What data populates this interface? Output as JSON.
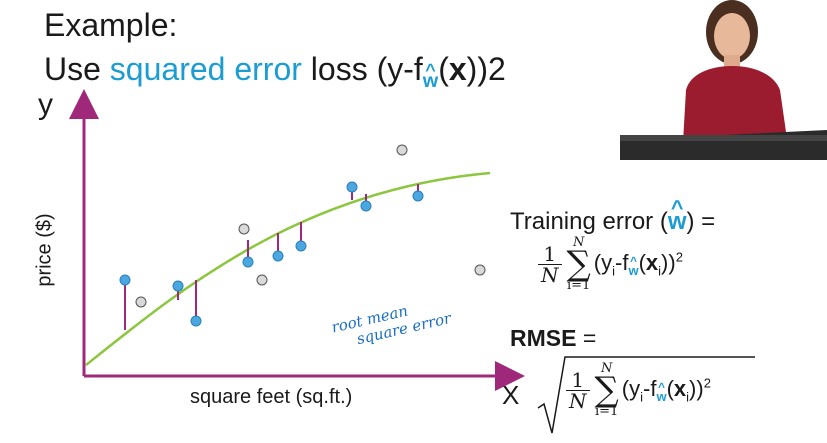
{
  "title": {
    "line1": "Example:",
    "line2_prefix": "Use ",
    "line2_highlight": "squared error",
    "line2_mid": " loss (y-f",
    "line2_sub": "w",
    "line2_hat": "^",
    "line2_x": "x",
    "line2_suffix": "))2",
    "line2_open": "("
  },
  "axes": {
    "y_letter": "y",
    "x_letter": "X",
    "y_label": "price ($)",
    "x_label": "square feet (sq.ft.)"
  },
  "annotation": {
    "line1": "root mean",
    "line2": "square error"
  },
  "training_error": {
    "label_prefix": "Training error (",
    "w": "w",
    "hat": "^",
    "label_suffix": ") =",
    "frac_num": "1",
    "frac_den": "N",
    "sum_top": "N",
    "sum_sym": "∑",
    "sum_bot": "i=1",
    "y": "(y",
    "i": "i",
    "minus_f": "-f",
    "x": "x",
    "close": "))",
    "sq": "2",
    "open": "("
  },
  "rmse": {
    "label": "RMSE",
    "eq": " ="
  },
  "colors": {
    "accent": "#1b9cd2",
    "axis": "#a0287a",
    "curve": "#8cc63f",
    "point_fill": "#4aa7e0",
    "residual": "#a0287a",
    "gray_point": "#d9d9d9"
  }
}
